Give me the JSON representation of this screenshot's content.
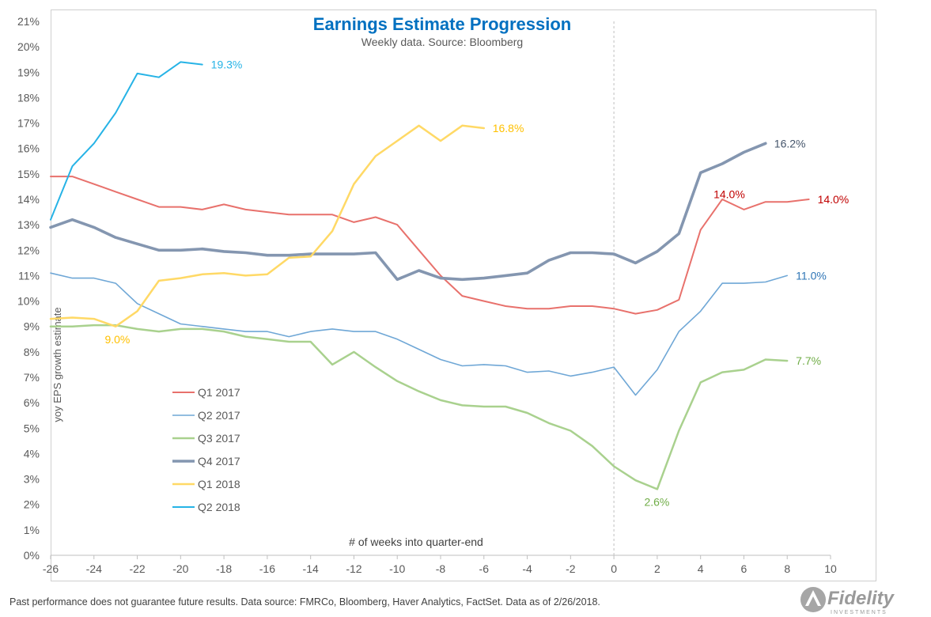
{
  "chart_data": {
    "type": "line",
    "title": "Earnings Estimate Progression",
    "subtitle": "Weekly data.  Source: Bloomberg",
    "xlabel": "# of weeks into quarter-end",
    "ylabel": "yoy EPS growth estimate",
    "xlim": [
      -26,
      10
    ],
    "ylim": [
      0,
      21
    ],
    "x_ticks": [
      -26,
      -24,
      -22,
      -20,
      -18,
      -16,
      -14,
      -12,
      -10,
      -8,
      -6,
      -4,
      -2,
      0,
      2,
      4,
      6,
      8,
      10
    ],
    "y_ticks": [
      0,
      1,
      2,
      3,
      4,
      5,
      6,
      7,
      8,
      9,
      10,
      11,
      12,
      13,
      14,
      15,
      16,
      17,
      18,
      19,
      20,
      21
    ],
    "y_tick_labels": [
      "0%",
      "1%",
      "2%",
      "3%",
      "4%",
      "5%",
      "6%",
      "7%",
      "8%",
      "9%",
      "10%",
      "11%",
      "12%",
      "13%",
      "14%",
      "15%",
      "16%",
      "17%",
      "18%",
      "19%",
      "20%",
      "21%"
    ],
    "grid": false,
    "vline_x": 0,
    "legend_position": "lower-left",
    "series": [
      {
        "name": "Q1 2017",
        "color": "#e8716c",
        "width": 2,
        "x": [
          -26,
          -25,
          -24,
          -23,
          -22,
          -21,
          -20,
          -19,
          -18,
          -17,
          -16,
          -15,
          -14,
          -13,
          -12,
          -11,
          -10,
          -9,
          -8,
          -7,
          -6,
          -5,
          -4,
          -3,
          -2,
          -1,
          0,
          1,
          2,
          3,
          4,
          5,
          6,
          7,
          8,
          9
        ],
        "y": [
          14.9,
          14.9,
          14.6,
          14.3,
          14.0,
          13.7,
          13.7,
          13.6,
          13.8,
          13.6,
          13.5,
          13.4,
          13.4,
          13.4,
          13.1,
          13.3,
          13.0,
          12.0,
          11.0,
          10.2,
          10.0,
          9.8,
          9.7,
          9.7,
          9.8,
          9.8,
          9.7,
          9.5,
          9.65,
          10.05,
          12.8,
          14.0,
          13.6,
          13.9,
          13.9,
          14.0
        ]
      },
      {
        "name": "Q2 2017",
        "color": "#6fa7d6",
        "width": 1.6,
        "x": [
          -26,
          -25,
          -24,
          -23,
          -22,
          -21,
          -20,
          -19,
          -18,
          -17,
          -16,
          -15,
          -14,
          -13,
          -12,
          -11,
          -10,
          -9,
          -8,
          -7,
          -6,
          -5,
          -4,
          -3,
          -2,
          -1,
          0,
          1,
          2,
          3,
          4,
          5,
          6,
          7,
          8
        ],
        "y": [
          11.1,
          10.9,
          10.9,
          10.7,
          9.9,
          9.5,
          9.1,
          9.0,
          8.9,
          8.8,
          8.8,
          8.6,
          8.8,
          8.9,
          8.8,
          8.8,
          8.5,
          8.1,
          7.7,
          7.45,
          7.5,
          7.45,
          7.2,
          7.25,
          7.05,
          7.2,
          7.4,
          6.3,
          7.3,
          8.8,
          9.6,
          10.7,
          10.7,
          10.75,
          11.0
        ]
      },
      {
        "name": "Q3 2017",
        "color": "#a9d18e",
        "width": 2.5,
        "x": [
          -26,
          -25,
          -24,
          -23,
          -22,
          -21,
          -20,
          -19,
          -18,
          -17,
          -16,
          -15,
          -14,
          -13,
          -12,
          -11,
          -10,
          -9,
          -8,
          -7,
          -6,
          -5,
          -4,
          -3,
          -2,
          -1,
          0,
          1,
          2,
          3,
          4,
          5,
          6,
          7,
          8
        ],
        "y": [
          9.0,
          9.0,
          9.05,
          9.05,
          8.9,
          8.8,
          8.9,
          8.9,
          8.8,
          8.6,
          8.5,
          8.4,
          8.4,
          7.5,
          8.0,
          7.4,
          6.85,
          6.45,
          6.1,
          5.9,
          5.85,
          5.85,
          5.6,
          5.2,
          4.9,
          4.3,
          3.5,
          2.95,
          2.6,
          4.9,
          6.8,
          7.2,
          7.3,
          7.7,
          7.65
        ]
      },
      {
        "name": "Q4 2017",
        "color": "#8496b0",
        "width": 3.6,
        "x": [
          -26,
          -25,
          -24,
          -23,
          -22,
          -21,
          -20,
          -19,
          -18,
          -17,
          -16,
          -15,
          -14,
          -13,
          -12,
          -11,
          -10,
          -9,
          -8,
          -7,
          -6,
          -5,
          -4,
          -3,
          -2,
          -1,
          0,
          1,
          2,
          3,
          4,
          5,
          6,
          7
        ],
        "y": [
          12.9,
          13.2,
          12.9,
          12.5,
          12.25,
          12.0,
          12.0,
          12.05,
          11.95,
          11.9,
          11.8,
          11.8,
          11.85,
          11.85,
          11.85,
          11.9,
          10.85,
          11.2,
          10.9,
          10.85,
          10.9,
          11.0,
          11.1,
          11.6,
          11.9,
          11.9,
          11.85,
          11.5,
          11.95,
          12.65,
          15.05,
          15.4,
          15.85,
          16.2
        ]
      },
      {
        "name": "Q1 2018",
        "color": "#ffd966",
        "width": 2.5,
        "x": [
          -26,
          -25,
          -24,
          -23,
          -22,
          -21,
          -20,
          -19,
          -18,
          -17,
          -16,
          -15,
          -14,
          -13,
          -12,
          -11,
          -10,
          -9,
          -8,
          -7,
          -6
        ],
        "y": [
          9.3,
          9.35,
          9.3,
          9.0,
          9.6,
          10.8,
          10.9,
          11.05,
          11.1,
          11.0,
          11.05,
          11.7,
          11.75,
          12.75,
          14.6,
          15.7,
          16.3,
          16.9,
          16.3,
          16.9,
          16.8
        ]
      },
      {
        "name": "Q2 2018",
        "color": "#26b3e6",
        "width": 2,
        "x": [
          -26,
          -25,
          -24,
          -23,
          -22,
          -21,
          -20,
          -19
        ],
        "y": [
          13.2,
          15.3,
          16.2,
          17.4,
          18.95,
          18.8,
          19.4,
          19.3
        ]
      }
    ],
    "annotations": [
      {
        "text": "19.3%",
        "x": -18.6,
        "y": 19.3,
        "color": "#26b3e6"
      },
      {
        "text": "16.8%",
        "x": -5.6,
        "y": 16.8,
        "color": "#ffc000"
      },
      {
        "text": "16.2%",
        "x": 7.4,
        "y": 16.2,
        "color": "#44546a"
      },
      {
        "text": "14.0%",
        "x": 4.6,
        "y": 14.2,
        "color": "#c00000"
      },
      {
        "text": "14.0%",
        "x": 9.4,
        "y": 14.0,
        "color": "#c00000"
      },
      {
        "text": "11.0%",
        "x": 8.4,
        "y": 11.0,
        "color": "#2e75b6"
      },
      {
        "text": "9.0%",
        "x": -23.5,
        "y": 8.5,
        "color": "#ffc000"
      },
      {
        "text": "7.7%",
        "x": 8.4,
        "y": 7.65,
        "color": "#70ad47"
      },
      {
        "text": "2.6%",
        "x": 1.4,
        "y": 2.1,
        "color": "#70ad47"
      }
    ]
  },
  "footer": "Past performance does not guarantee future results. Data source: FMRCo, Bloomberg, Haver Analytics, FactSet.  Data as of 2/26/2018.",
  "brand": {
    "name": "Fidelity",
    "tagline": "INVESTMENTS",
    "color": "#9a9a9a"
  }
}
